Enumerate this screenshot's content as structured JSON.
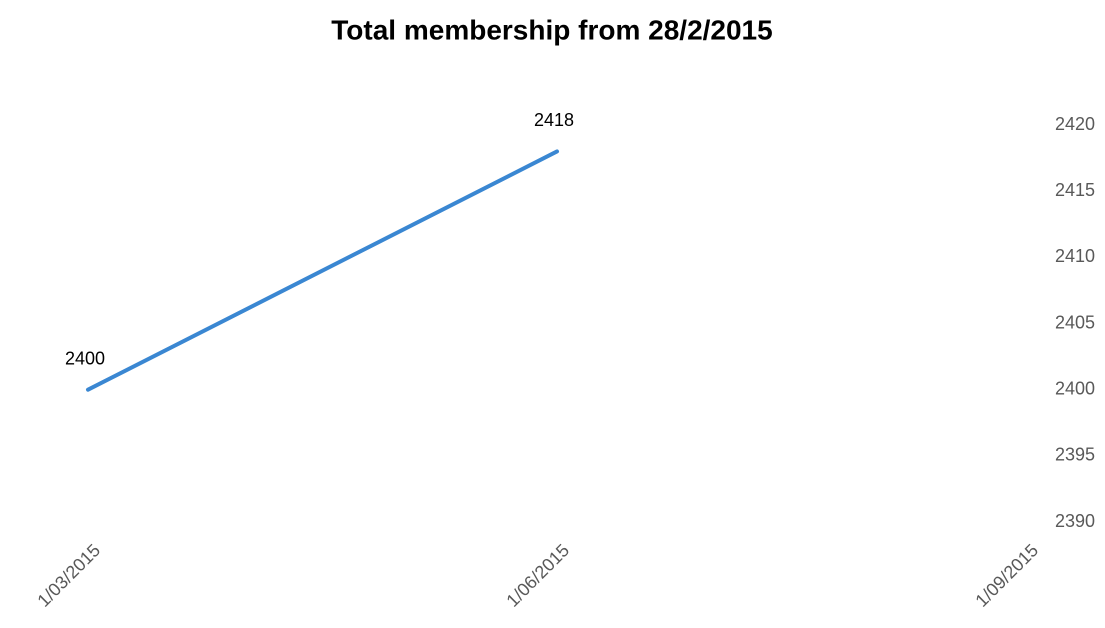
{
  "chart_data": {
    "type": "line",
    "title": "Total membership from 28/2/2015",
    "categories": [
      "1/03/2015",
      "1/06/2015",
      "1/09/2015"
    ],
    "values": [
      2400,
      2418,
      null
    ],
    "color": "#3a87d2",
    "ylim": [
      2390,
      2420
    ],
    "yticks": [
      2390,
      2395,
      2400,
      2405,
      2410,
      2415,
      2420
    ],
    "y_axis_side": "right",
    "grid": false,
    "data_labels": true
  }
}
